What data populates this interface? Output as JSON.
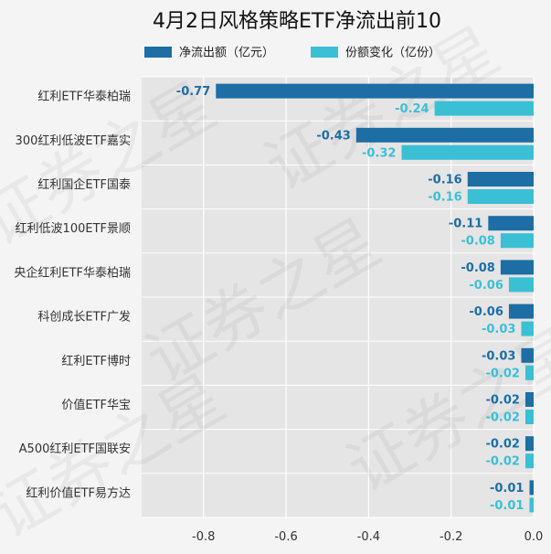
{
  "chart_data": {
    "type": "bar",
    "orientation": "horizontal",
    "title": "4月2日风格策略ETF净流出前10",
    "categories": [
      "红利ETF华泰柏瑞",
      "300红利低波ETF嘉实",
      "红利国企ETF国泰",
      "红利低波100ETF景顺",
      "央企红利ETF华泰柏瑞",
      "科创成长ETF广发",
      "红利ETF博时",
      "价值ETF华宝",
      "A500红利ETF国联安",
      "红利价值ETF易方达"
    ],
    "series": [
      {
        "name": "净流出额（亿元）",
        "color": "#1c6ea4",
        "values": [
          -0.77,
          -0.43,
          -0.16,
          -0.11,
          -0.08,
          -0.06,
          -0.03,
          -0.02,
          -0.02,
          -0.01
        ],
        "labels": [
          "-0.77",
          "-0.43",
          "-0.16",
          "-0.11",
          "-0.08",
          "-0.06",
          "-0.03",
          "-0.02",
          "-0.02",
          "-0.01"
        ]
      },
      {
        "name": "份额变化（亿份）",
        "color": "#3bbfd4",
        "values": [
          -0.24,
          -0.32,
          -0.16,
          -0.08,
          -0.06,
          -0.03,
          -0.02,
          -0.02,
          -0.02,
          -0.01
        ],
        "labels": [
          "-0.24",
          "-0.32",
          "-0.16",
          "-0.08",
          "-0.06",
          "-0.03",
          "-0.02",
          "-0.02",
          "-0.02",
          "-0.01"
        ]
      }
    ],
    "xlim": [
      -0.95,
      0.0
    ],
    "xticks": [
      -0.8,
      -0.6,
      -0.4,
      -0.2,
      0.0
    ],
    "xtick_labels": [
      "-0.8",
      "-0.6",
      "-0.4",
      "-0.2",
      "0.0"
    ],
    "xlabel": "",
    "ylabel": "",
    "grid": true,
    "legend_position": "top",
    "plot_background": "#e5e5e5",
    "watermark_text": "证券之星"
  }
}
